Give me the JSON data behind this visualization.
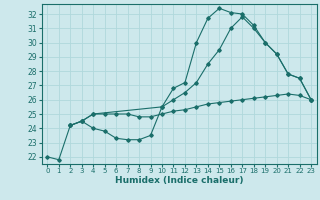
{
  "xlabel": "Humidex (Indice chaleur)",
  "xlim": [
    -0.5,
    23.5
  ],
  "ylim": [
    21.5,
    32.7
  ],
  "yticks": [
    22,
    23,
    24,
    25,
    26,
    27,
    28,
    29,
    30,
    31,
    32
  ],
  "xticks": [
    0,
    1,
    2,
    3,
    4,
    5,
    6,
    7,
    8,
    9,
    10,
    11,
    12,
    13,
    14,
    15,
    16,
    17,
    18,
    19,
    20,
    21,
    22,
    23
  ],
  "bg_color": "#cde8ec",
  "line_color": "#1a6e6a",
  "grid_color": "#b0d8dc",
  "lines": [
    {
      "x": [
        0,
        1,
        2,
        3,
        4,
        5,
        6,
        7,
        8,
        9,
        10,
        11,
        12,
        13,
        14,
        15,
        16,
        17,
        18,
        19,
        20,
        21,
        22,
        23
      ],
      "y": [
        22.0,
        21.8,
        24.2,
        24.5,
        24.0,
        23.8,
        23.3,
        23.2,
        23.2,
        23.5,
        25.5,
        26.8,
        27.2,
        30.0,
        31.7,
        32.4,
        32.1,
        32.0,
        31.2,
        30.0,
        29.2,
        27.8,
        27.5,
        26.0
      ]
    },
    {
      "x": [
        2,
        3,
        4,
        10,
        11,
        12,
        13,
        14,
        15,
        16,
        17,
        18,
        19,
        20,
        21,
        22,
        23
      ],
      "y": [
        24.2,
        24.5,
        25.0,
        25.5,
        26.0,
        26.5,
        27.2,
        28.5,
        29.5,
        31.0,
        31.8,
        31.0,
        30.0,
        29.2,
        27.8,
        27.5,
        26.0
      ]
    },
    {
      "x": [
        2,
        3,
        4,
        5,
        6,
        7,
        8,
        9,
        10,
        11,
        12,
        13,
        14,
        15,
        16,
        17,
        18,
        19,
        20,
        21,
        22,
        23
      ],
      "y": [
        24.2,
        24.5,
        25.0,
        25.0,
        25.0,
        25.0,
        24.8,
        24.8,
        25.0,
        25.2,
        25.3,
        25.5,
        25.7,
        25.8,
        25.9,
        26.0,
        26.1,
        26.2,
        26.3,
        26.4,
        26.3,
        26.0
      ]
    }
  ]
}
